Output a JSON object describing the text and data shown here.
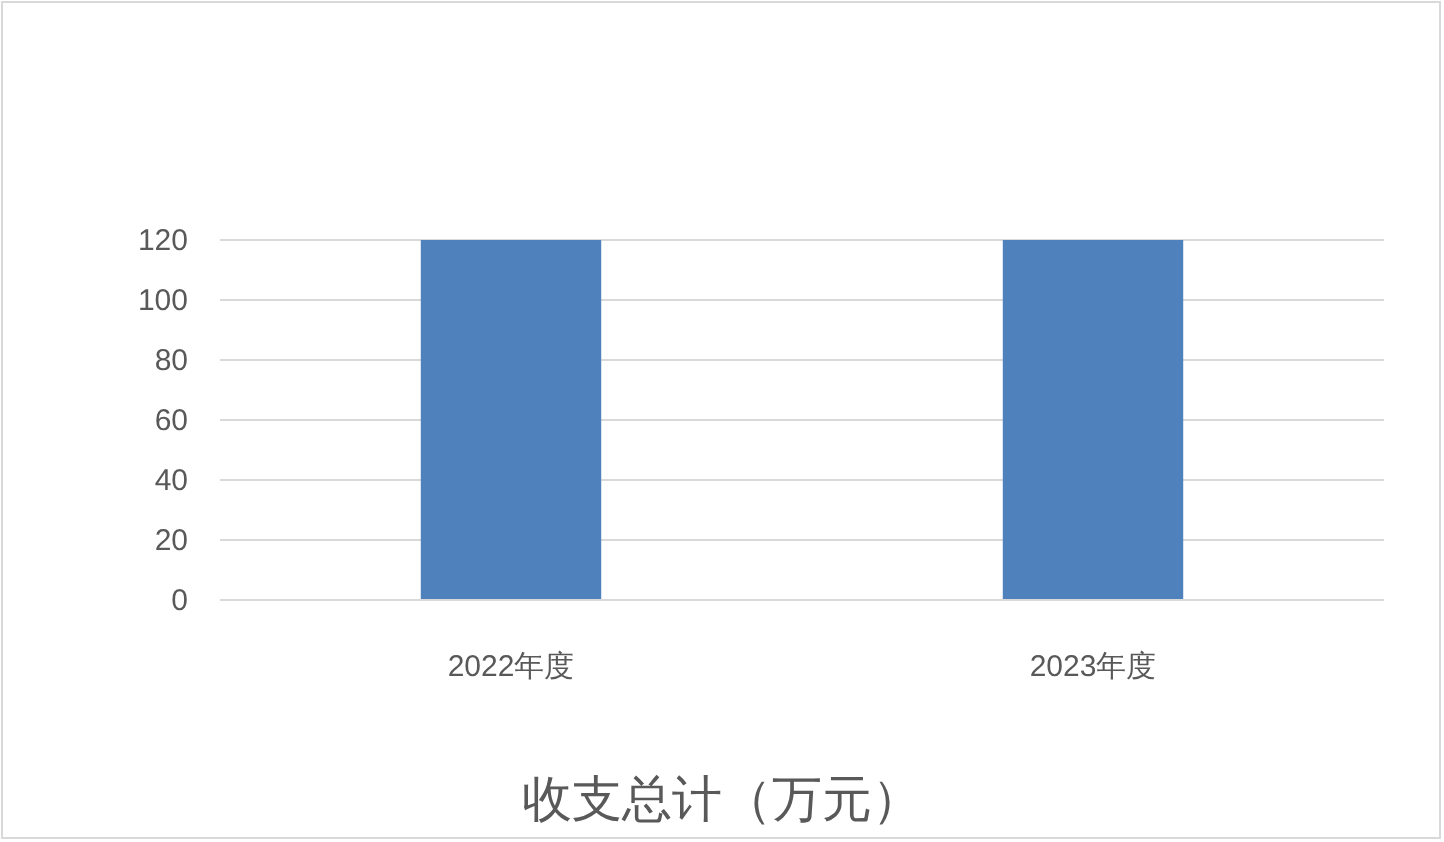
{
  "chart_data": {
    "type": "bar",
    "title": "收支总计（万元）",
    "categories": [
      "2022年度",
      "2023年度"
    ],
    "values": [
      120,
      120
    ],
    "color": "#4f81bd",
    "ylim": [
      0,
      120
    ],
    "yticks": [
      0,
      20,
      40,
      60,
      80,
      100,
      120
    ],
    "grid": "y"
  }
}
